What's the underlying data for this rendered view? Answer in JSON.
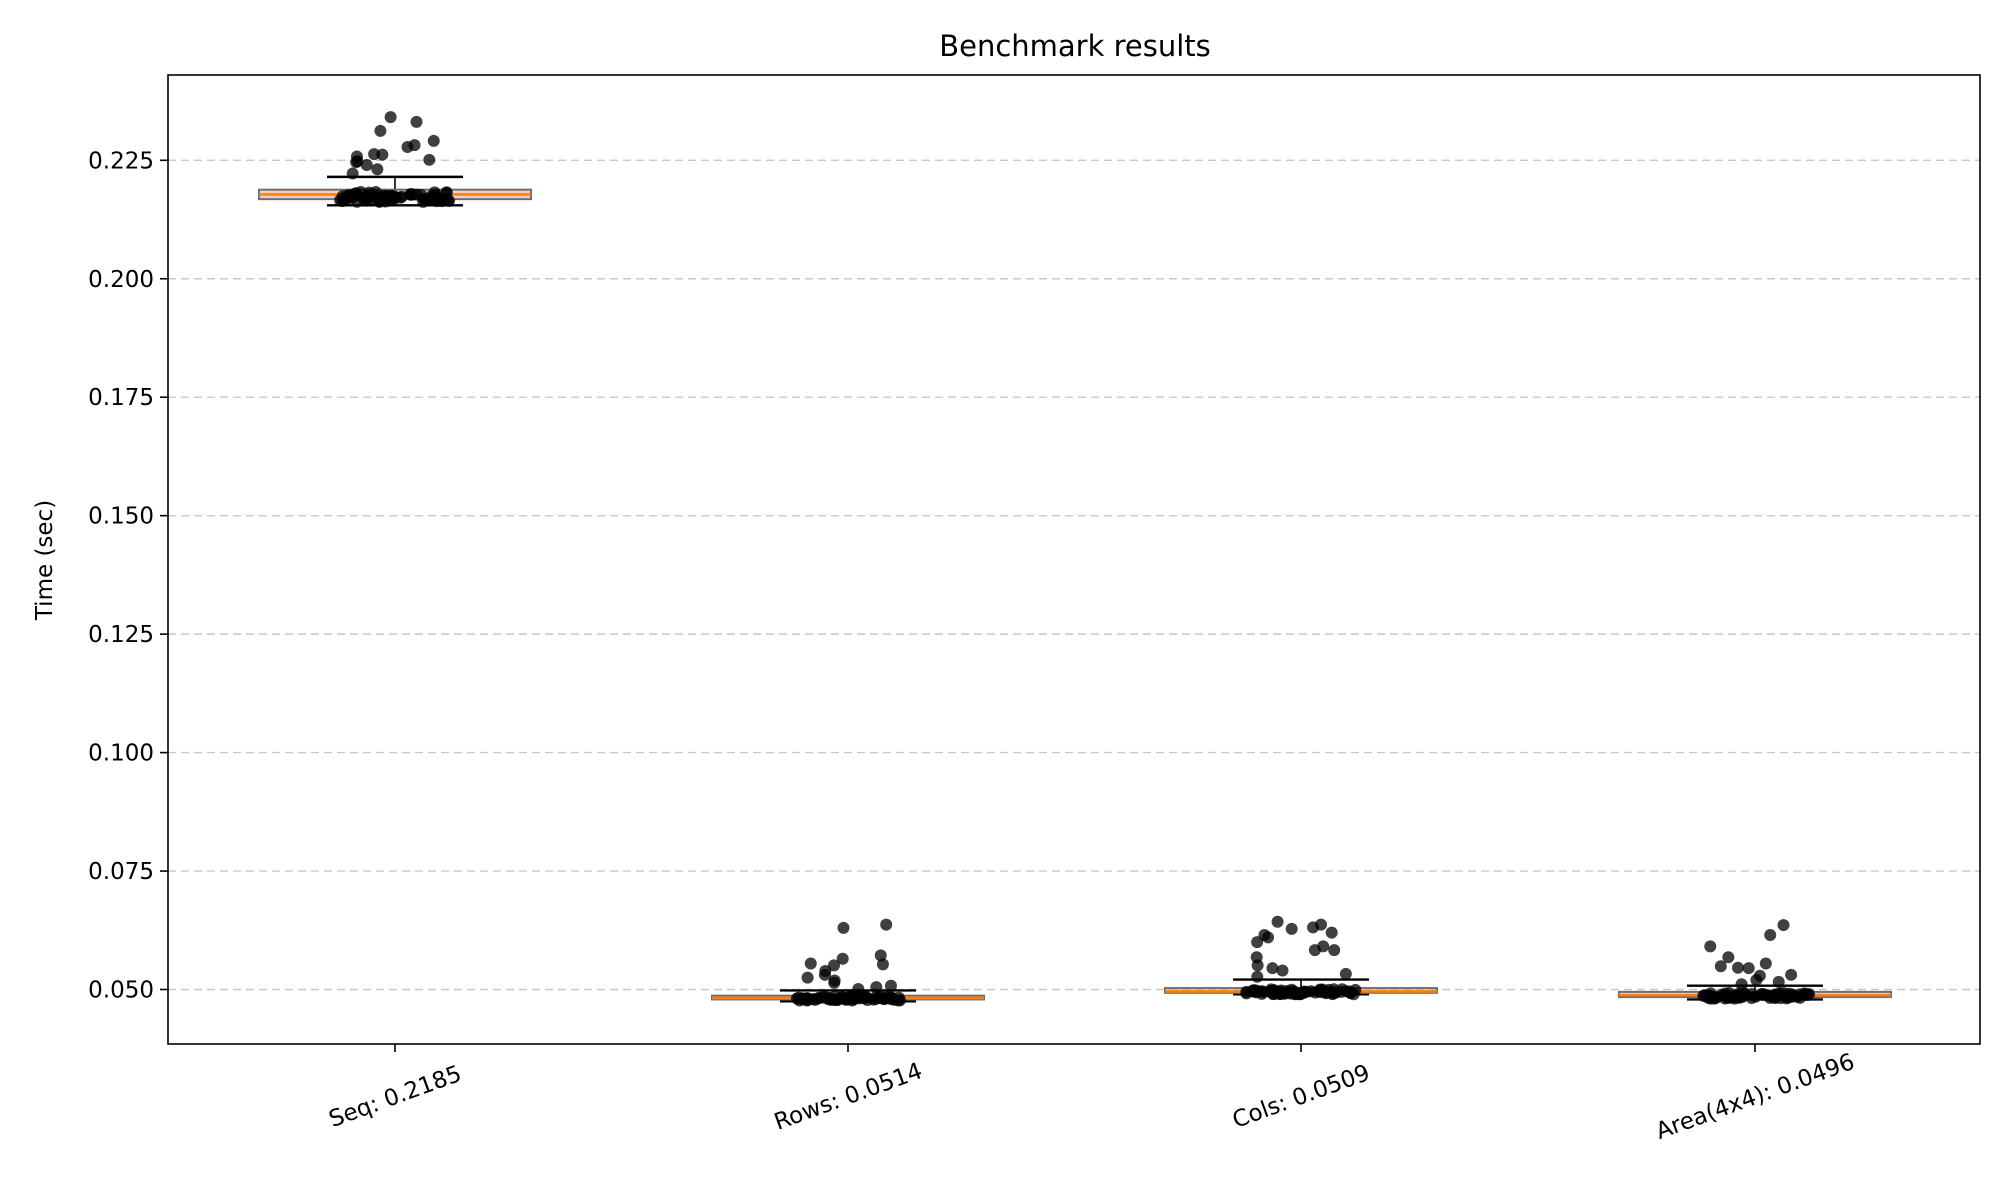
{
  "chart_data": {
    "type": "box",
    "title": "Benchmark results",
    "xlabel": "",
    "ylabel": "Time (sec)",
    "ylim": [
      0.0385,
      0.243
    ],
    "yticks": [
      "0.050",
      "0.075",
      "0.100",
      "0.125",
      "0.150",
      "0.175",
      "0.200",
      "0.225"
    ],
    "grid": "horizontal dashed",
    "categories": [
      "Seq: 0.2185",
      "Rows: 0.0514",
      "Cols: 0.0509",
      "Area(4x4): 0.0496"
    ],
    "boxes": [
      {
        "whisker_low": 0.2155,
        "q1": 0.2168,
        "median": 0.2178,
        "q3": 0.2188,
        "whisker_high": 0.2215
      },
      {
        "whisker_low": 0.0475,
        "q1": 0.0479,
        "median": 0.0482,
        "q3": 0.0487,
        "whisker_high": 0.0498
      },
      {
        "whisker_low": 0.049,
        "q1": 0.0493,
        "median": 0.0496,
        "q3": 0.0503,
        "whisker_high": 0.0521
      },
      {
        "whisker_low": 0.0479,
        "q1": 0.0484,
        "median": 0.0488,
        "q3": 0.0495,
        "whisker_high": 0.0508
      }
    ],
    "outliers": [
      [
        0.2341,
        0.2331,
        0.2312,
        0.2291,
        0.2282,
        0.2278,
        0.2263,
        0.2262,
        0.2258,
        0.2251,
        0.2248,
        0.2246,
        0.224,
        0.2231,
        0.2222
      ],
      [
        0.0637,
        0.063,
        0.0572,
        0.0565,
        0.0555,
        0.0553,
        0.0551,
        0.0539,
        0.0531,
        0.0525,
        0.0519,
        0.0514,
        0.0508,
        0.0505,
        0.0501
      ],
      [
        0.0643,
        0.0637,
        0.0631,
        0.0628,
        0.062,
        0.0615,
        0.061,
        0.06,
        0.0591,
        0.0583,
        0.0583,
        0.0568,
        0.0551,
        0.0545,
        0.054,
        0.0533,
        0.0527
      ],
      [
        0.0636,
        0.0615,
        0.0591,
        0.0568,
        0.0555,
        0.0549,
        0.0546,
        0.0545,
        0.0531,
        0.0529,
        0.052,
        0.0516,
        0.0511
      ]
    ],
    "colors": {
      "box_edge": "#6e6e6e",
      "box_fill": "#f4a582",
      "median": "#ff7f0e",
      "points": "#000000",
      "grid": "#c8c8c8"
    }
  }
}
